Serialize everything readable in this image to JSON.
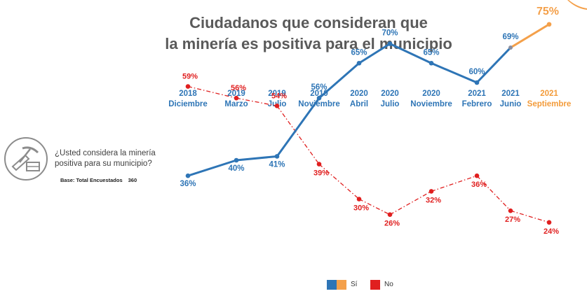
{
  "title": {
    "line1": "Ciudadanos que consideran que",
    "line2": "la minería es positiva para el municipio"
  },
  "question": {
    "icon": "mining-pickaxe-icon",
    "text": "¿Usted considera la minería positiva para su municipio?",
    "base_label": "Base: Total Encuestados",
    "base_value": "360"
  },
  "legend": {
    "si": "Sí",
    "no": "No"
  },
  "colors": {
    "si": "#2e75b6",
    "si_latest": "#f4a04a",
    "no": "#e01f1f",
    "header": "#2e75b6",
    "header_latest": "#f39b3a"
  },
  "chart_data": {
    "type": "line",
    "categories": [
      {
        "year": "2018",
        "month": "Diciembre"
      },
      {
        "year": "2019",
        "month": "Marzo"
      },
      {
        "year": "2019",
        "month": "Julio"
      },
      {
        "year": "2019",
        "month": "Noviembre"
      },
      {
        "year": "2020",
        "month": "Abril"
      },
      {
        "year": "2020",
        "month": "Julio"
      },
      {
        "year": "2020",
        "month": "Noviembre"
      },
      {
        "year": "2021",
        "month": "Febrero"
      },
      {
        "year": "2021",
        "month": "Junio"
      },
      {
        "year": "2021",
        "month": "Septiembre"
      }
    ],
    "series": [
      {
        "name": "Sí",
        "values": [
          36,
          40,
          41,
          56,
          65,
          70,
          65,
          60,
          69,
          75
        ]
      },
      {
        "name": "No",
        "values": [
          59,
          56,
          54,
          39,
          30,
          26,
          32,
          36,
          27,
          24
        ]
      }
    ],
    "value_suffix": "%",
    "legend_position": "bottom",
    "grid": false
  }
}
